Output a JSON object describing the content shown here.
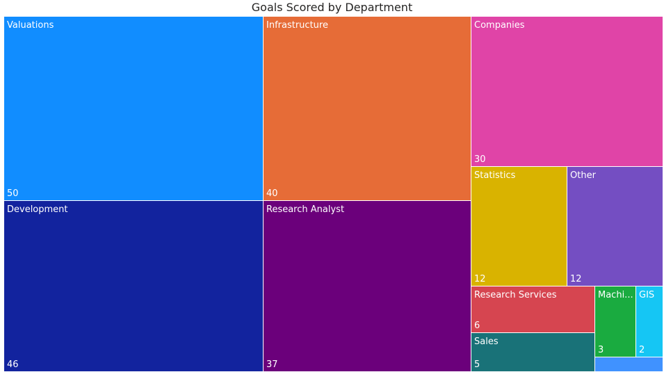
{
  "chart_data": {
    "type": "treemap",
    "title": "Goals Scored by Department",
    "items": [
      {
        "name": "Valuations",
        "value": 50,
        "color": "#118DFF",
        "label_visible": true,
        "value_visible": true
      },
      {
        "name": "Development",
        "value": 46,
        "color": "#12239E",
        "label_visible": true,
        "value_visible": true
      },
      {
        "name": "Infrastructure",
        "value": 40,
        "color": "#E66C37",
        "label_visible": true,
        "value_visible": true
      },
      {
        "name": "Research Analyst",
        "value": 37,
        "color": "#6B007B",
        "label_visible": true,
        "value_visible": true
      },
      {
        "name": "Companies",
        "value": 30,
        "color": "#E044A7",
        "label_visible": true,
        "value_visible": true
      },
      {
        "name": "Statistics",
        "value": 12,
        "color": "#D9B300",
        "label_visible": true,
        "value_visible": true
      },
      {
        "name": "Other",
        "value": 12,
        "color": "#744EC2",
        "label_visible": true,
        "value_visible": true
      },
      {
        "name": "Research Services",
        "value": 6,
        "color": "#D64550",
        "label_visible": true,
        "value_visible": true
      },
      {
        "name": "Sales",
        "value": 5,
        "color": "#197278",
        "label_visible": true,
        "value_visible": true
      },
      {
        "name": "Machi...",
        "value": 3,
        "color": "#1AAB40",
        "label_visible": true,
        "value_visible": true
      },
      {
        "name": "GIS",
        "value": 2,
        "color": "#15C6F4",
        "label_visible": true,
        "value_visible": true
      },
      {
        "name": "",
        "value": 1,
        "color": "#4092FF",
        "label_visible": false,
        "value_visible": false
      }
    ]
  }
}
